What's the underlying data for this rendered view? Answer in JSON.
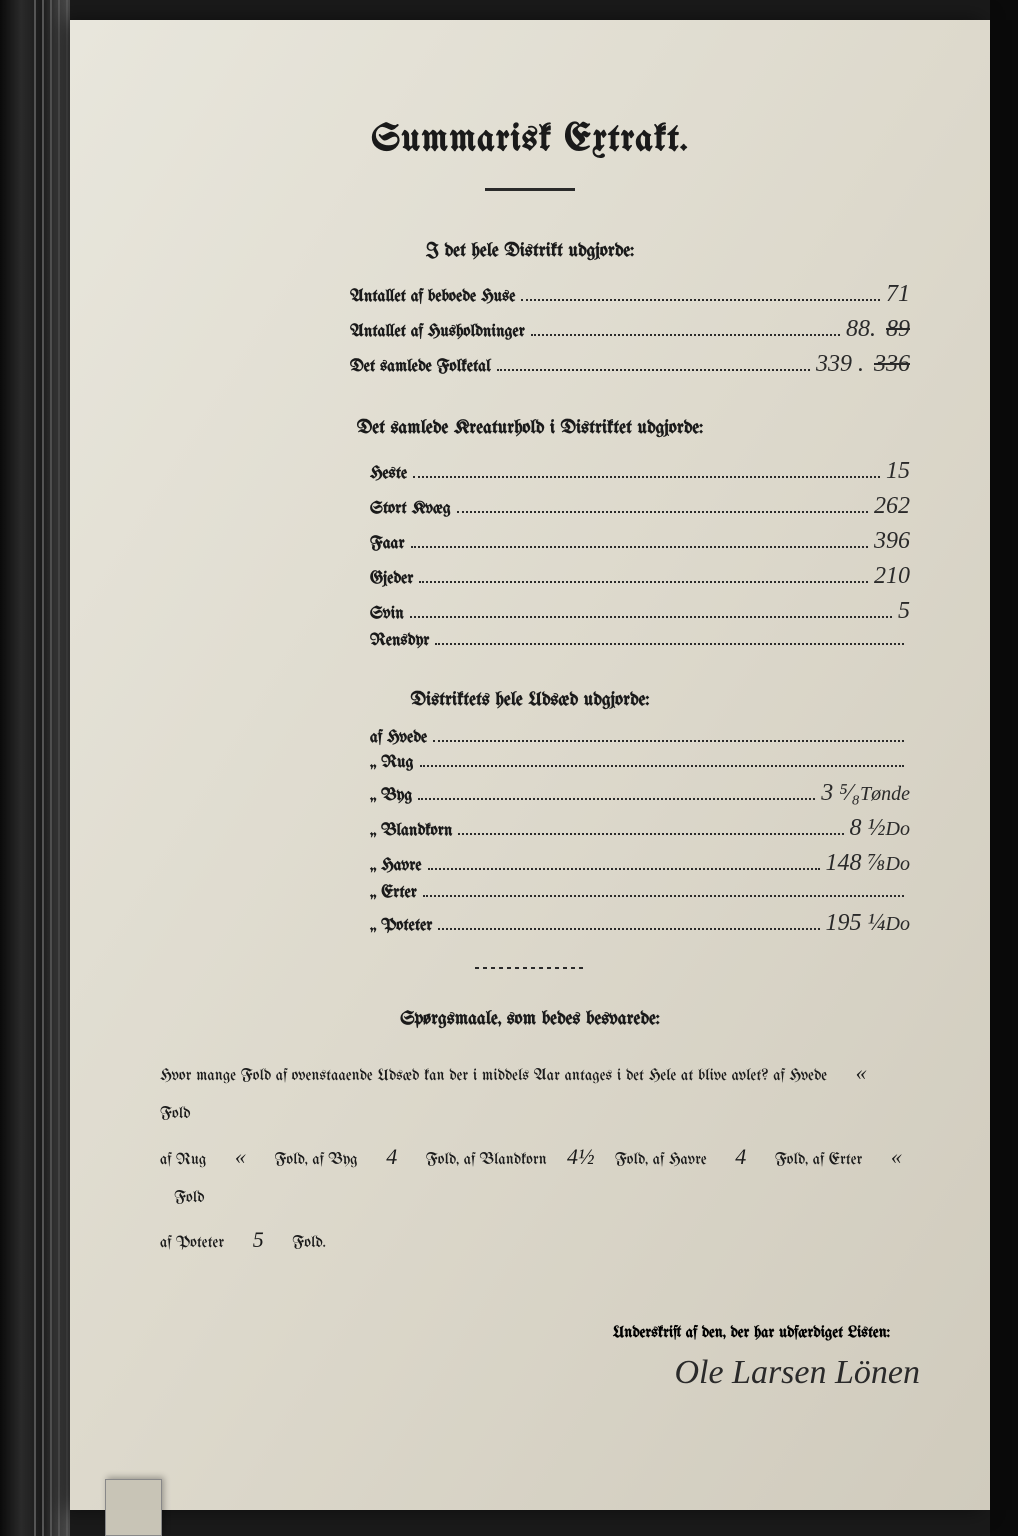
{
  "title": "Summarisk Extrakt.",
  "sections": {
    "district": {
      "heading": "I det hele Distrikt udgjorde:",
      "rows": [
        {
          "label": "Antallet af beboede Huse",
          "value": "71",
          "struck": ""
        },
        {
          "label": "Antallet af Husholdninger",
          "value": "88.",
          "struck": "89"
        },
        {
          "label": "Det samlede Folketal",
          "value": "339 .",
          "struck": "336"
        }
      ]
    },
    "livestock": {
      "heading": "Det samlede Kreaturhold i Distriktet udgjorde:",
      "rows": [
        {
          "label": "Heste",
          "value": "15"
        },
        {
          "label": "Stort Kvæg",
          "value": "262"
        },
        {
          "label": "Faar",
          "value": "396"
        },
        {
          "label": "Gjeder",
          "value": "210"
        },
        {
          "label": "Svin",
          "value": "5"
        },
        {
          "label": "Rensdyr",
          "value": ""
        }
      ]
    },
    "sowing": {
      "heading": "Distriktets hele Udsæd udgjorde:",
      "rows": [
        {
          "label": "af Hvede",
          "value": ""
        },
        {
          "label": "„ Rug",
          "value": ""
        },
        {
          "label": "„ Byg",
          "value": "3 ⁵⁄₈",
          "annot": "Tønde"
        },
        {
          "label": "„ Blandkorn",
          "value": "8 ½",
          "annot": "Do"
        },
        {
          "label": "„ Havre",
          "value": "148 ⅞",
          "annot": "Do"
        },
        {
          "label": "„ Erter",
          "value": ""
        },
        {
          "label": "„ Poteter",
          "value": "195 ¼",
          "annot": "Do"
        }
      ]
    }
  },
  "questions": {
    "heading": "Spørgsmaale, som bedes besvarede:",
    "line1_prefix": "Hvor mange Fold af ovenstaaende Udsæd kan der i middels Aar antages i det Hele at blive avlet?   af Hvede",
    "hvede": "«",
    "fold": "Fold",
    "rug_label": "af Rug",
    "rug": "«",
    "byg_label": "Fold, af Byg",
    "byg": "4",
    "bland_label": "Fold, af Blandkorn",
    "bland": "4½",
    "havre_label": "Fold, af Havre",
    "havre": "4",
    "erter_label": "Fold, af Erter",
    "erter": "«",
    "poteter_label": "af Poteter",
    "poteter": "5",
    "poteter_suffix": "Fold."
  },
  "signature": {
    "label": "Underskrift af den, der har udfærdiget Listen:",
    "name": "Ole Larsen Lönen"
  },
  "colors": {
    "page_bg": "#ddd9cc",
    "ink": "#1a1a1a",
    "handwriting": "#2a2a2a"
  }
}
